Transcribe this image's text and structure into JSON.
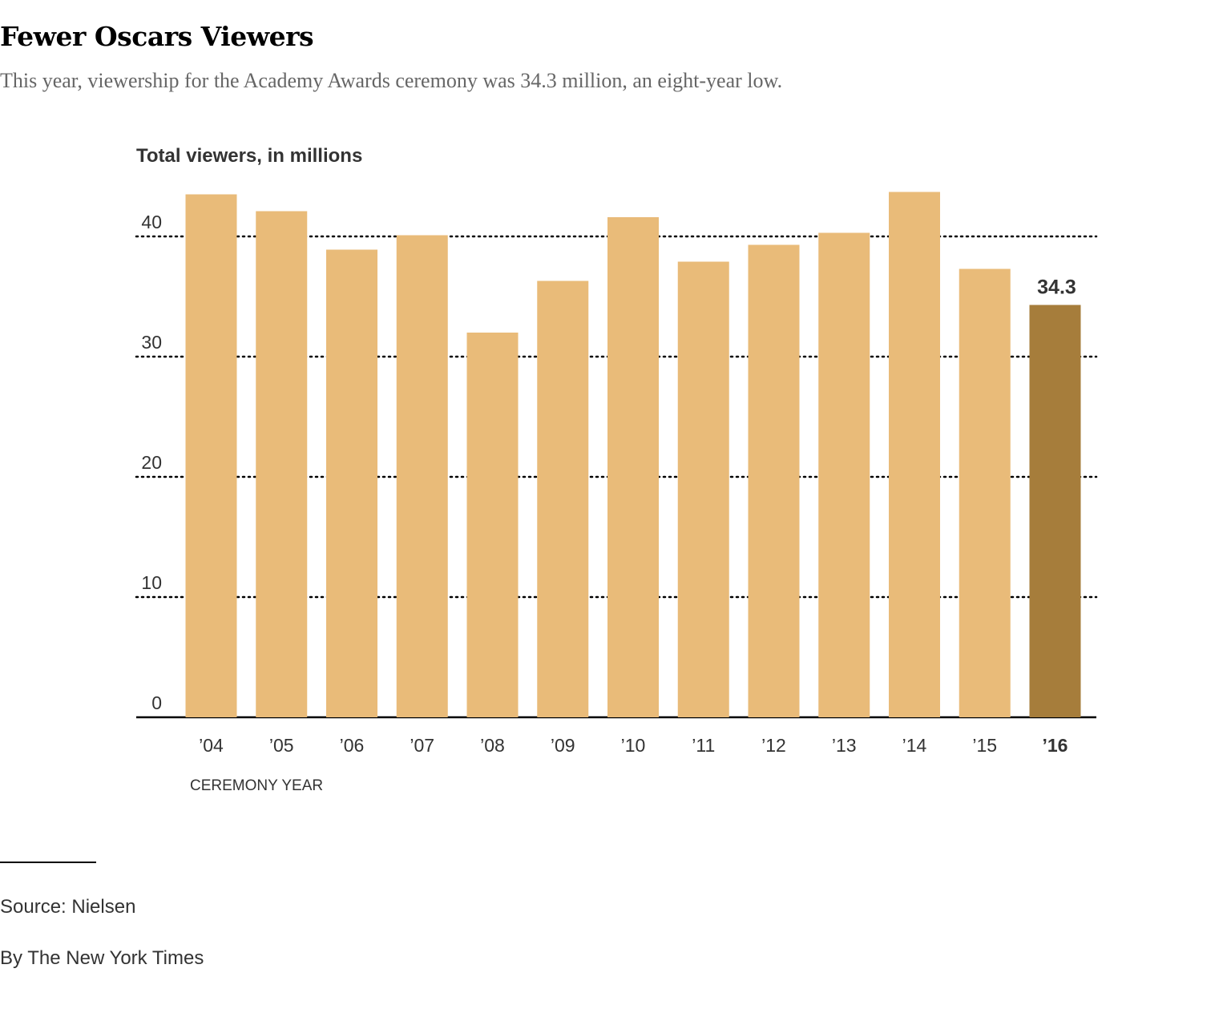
{
  "header": {
    "title": "Fewer Oscars Viewers",
    "subtitle": "This year, viewership for the Academy Awards ceremony was 34.3 million, an eight-year low."
  },
  "chart_data": {
    "type": "bar",
    "ylabel": "Total viewers, in millions",
    "xlabel": "CEREMONY YEAR",
    "categories": [
      "’04",
      "’05",
      "’06",
      "’07",
      "’08",
      "’09",
      "’10",
      "’11",
      "’12",
      "’13",
      "’14",
      "’15",
      "’16"
    ],
    "values": [
      43.5,
      42.1,
      38.9,
      40.1,
      32.0,
      36.3,
      41.6,
      37.9,
      39.3,
      40.3,
      43.7,
      37.3,
      34.3
    ],
    "ylim": [
      0,
      45
    ],
    "yticks": [
      0,
      10,
      20,
      30,
      40
    ],
    "grid": true,
    "highlight_index": 12,
    "highlight_label": "34.3",
    "colors": {
      "bar": "#e9bb79",
      "highlight": "#a67d3b",
      "grid": "#000000",
      "axis": "#000000"
    }
  },
  "footer": {
    "source": "Source: Nielsen",
    "credit": "By The New York Times"
  }
}
